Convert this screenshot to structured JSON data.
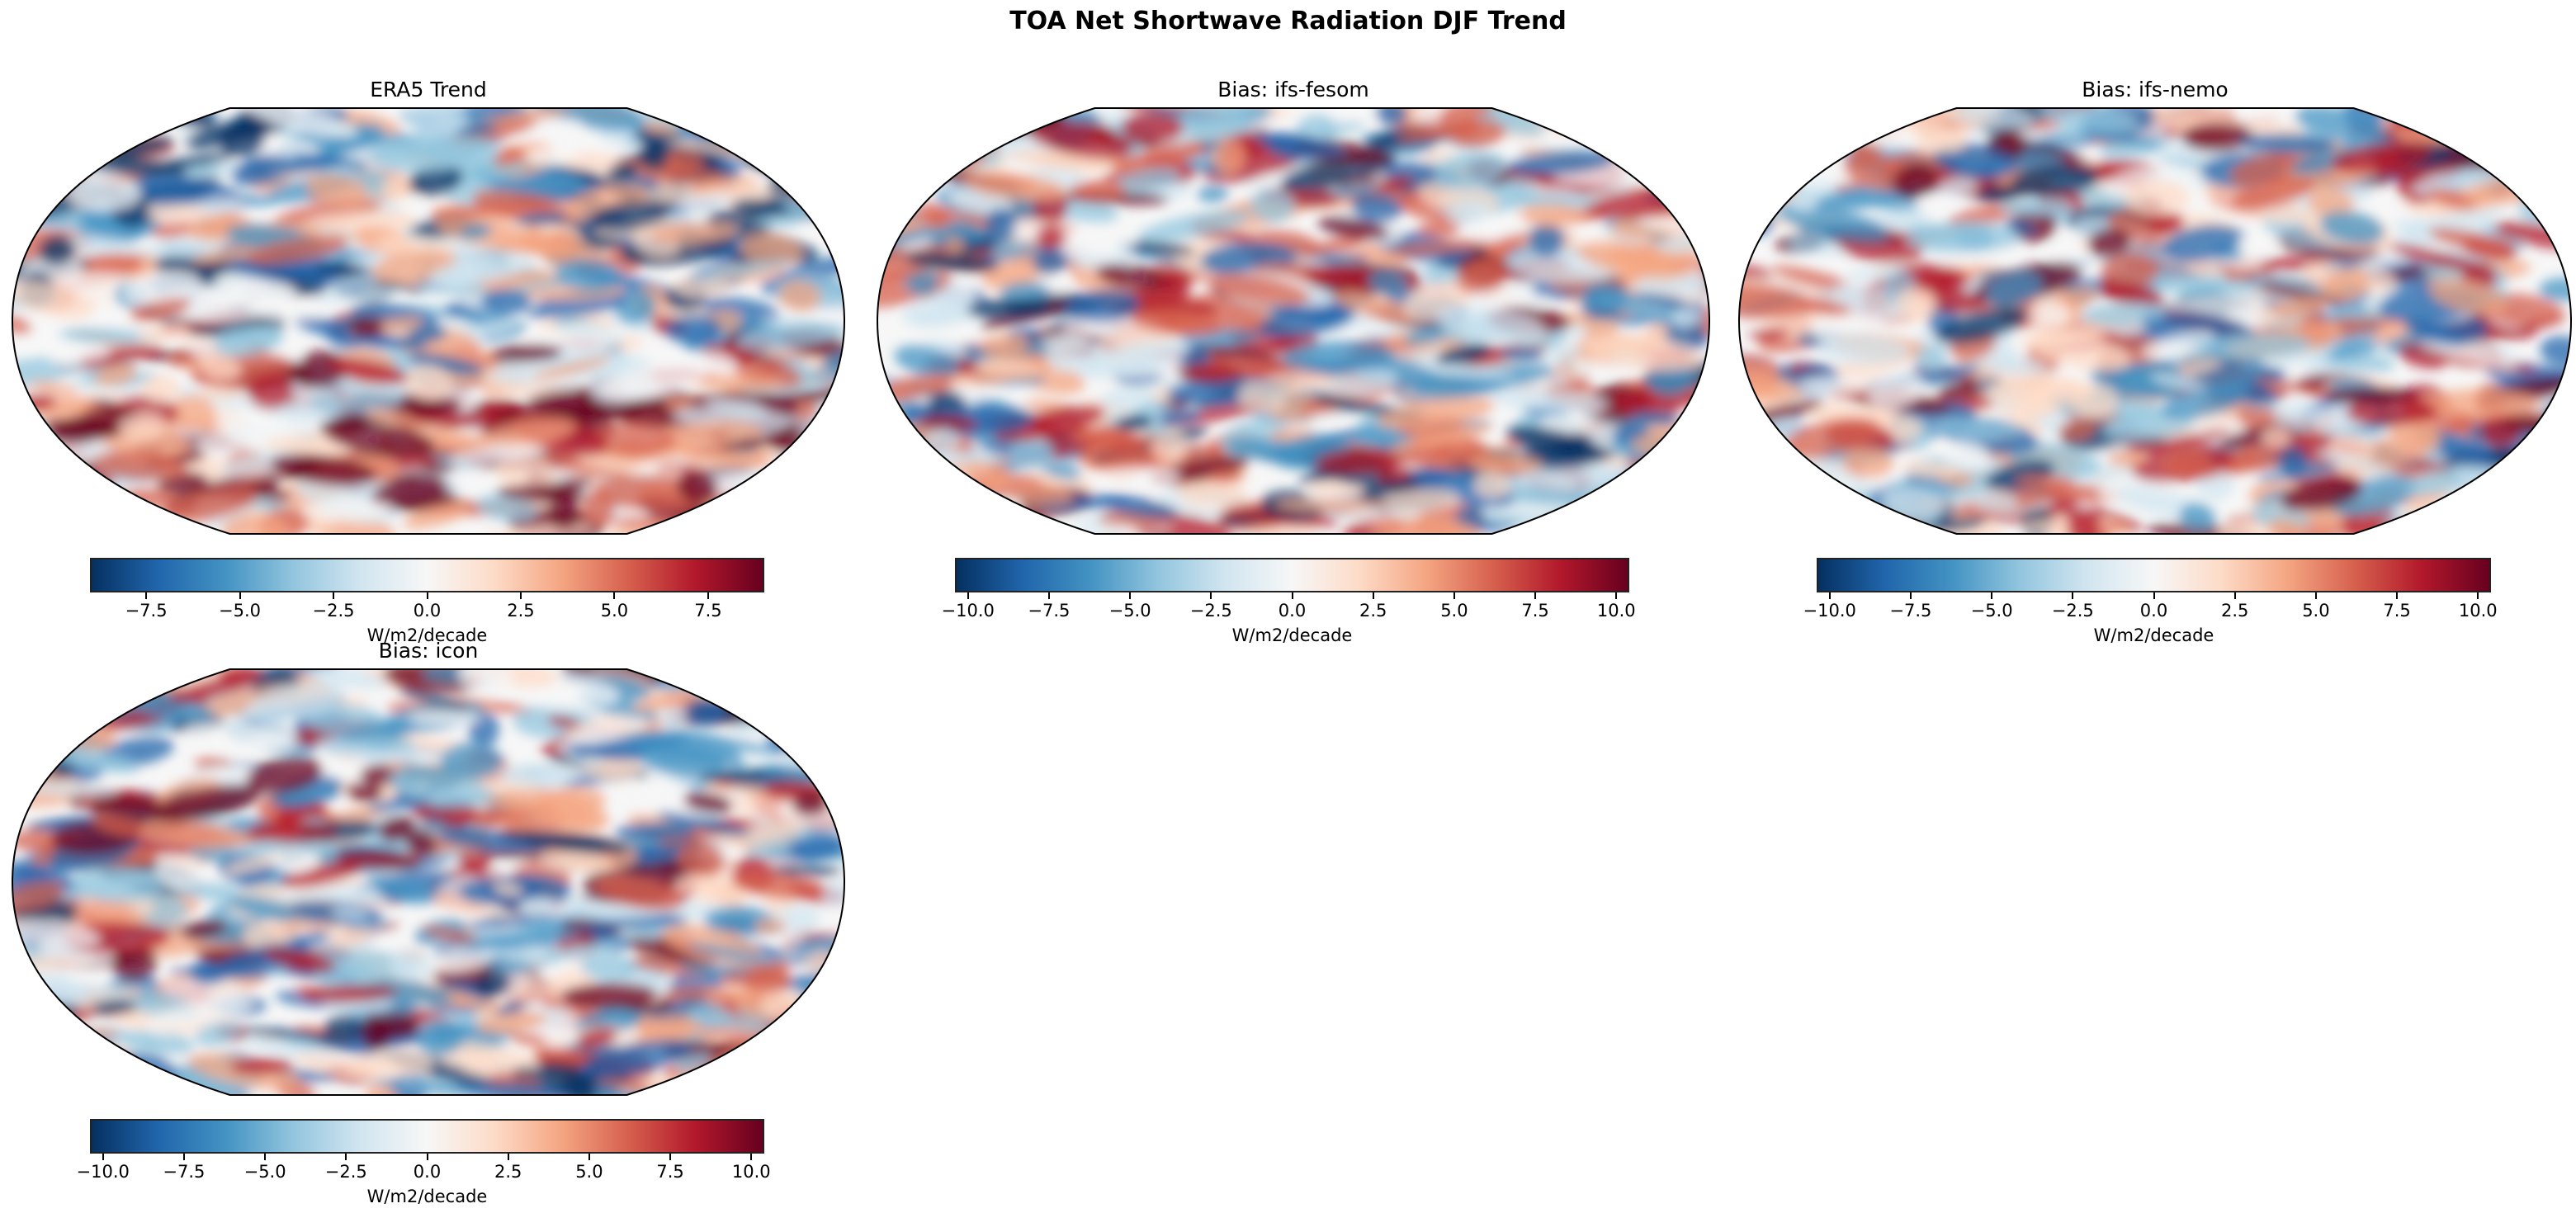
{
  "suptitle": "TOA Net Shortwave Radiation DJF Trend",
  "chart_data": [
    {
      "type": "heatmap",
      "title": "ERA5 Trend",
      "projection": "Robinson",
      "colormap": "RdBu_r",
      "colorbar_label": "W/m2/decade",
      "clim": [
        -9.0,
        9.0
      ],
      "ticks": [
        -7.5,
        -5.0,
        -2.5,
        0.0,
        2.5,
        5.0,
        7.5
      ],
      "tick_labels": [
        "−7.5",
        "−5.0",
        "−2.5",
        "0.0",
        "2.5",
        "5.0",
        "7.5"
      ],
      "seed": 11
    },
    {
      "type": "heatmap",
      "title": "Bias: ifs-fesom",
      "projection": "Robinson",
      "colormap": "RdBu_r",
      "colorbar_label": "W/m2/decade",
      "clim": [
        -10.4,
        10.4
      ],
      "ticks": [
        -10.0,
        -7.5,
        -5.0,
        -2.5,
        0.0,
        2.5,
        5.0,
        7.5,
        10.0
      ],
      "tick_labels": [
        "−10.0",
        "−7.5",
        "−5.0",
        "−2.5",
        "0.0",
        "2.5",
        "5.0",
        "7.5",
        "10.0"
      ],
      "seed": 23
    },
    {
      "type": "heatmap",
      "title": "Bias: ifs-nemo",
      "projection": "Robinson",
      "colormap": "RdBu_r",
      "colorbar_label": "W/m2/decade",
      "clim": [
        -10.4,
        10.4
      ],
      "ticks": [
        -10.0,
        -7.5,
        -5.0,
        -2.5,
        0.0,
        2.5,
        5.0,
        7.5,
        10.0
      ],
      "tick_labels": [
        "−10.0",
        "−7.5",
        "−5.0",
        "−2.5",
        "0.0",
        "2.5",
        "5.0",
        "7.5",
        "10.0"
      ],
      "seed": 37
    },
    {
      "type": "heatmap",
      "title": "Bias: icon",
      "projection": "Robinson",
      "colormap": "RdBu_r",
      "colorbar_label": "W/m2/decade",
      "clim": [
        -10.4,
        10.4
      ],
      "ticks": [
        -10.0,
        -7.5,
        -5.0,
        -2.5,
        0.0,
        2.5,
        5.0,
        7.5,
        10.0
      ],
      "tick_labels": [
        "−10.0",
        "−7.5",
        "−5.0",
        "−2.5",
        "0.0",
        "2.5",
        "5.0",
        "7.5",
        "10.0"
      ],
      "seed": 51
    }
  ]
}
